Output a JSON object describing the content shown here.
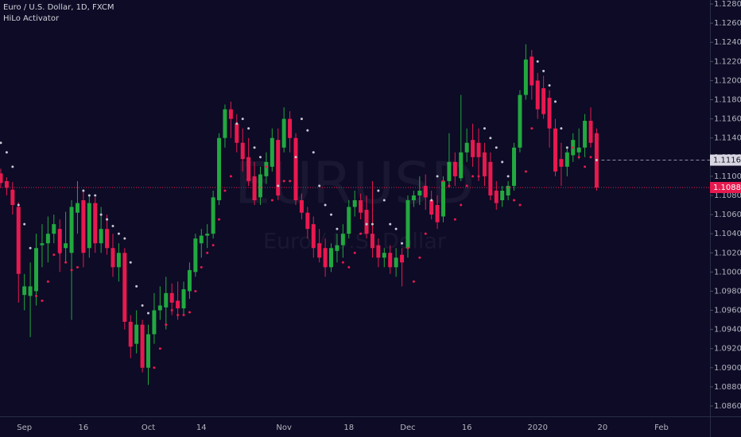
{
  "chart_data": {
    "type": "candlestick",
    "title": "Euro / U.S. Dollar, 1D, FXCM",
    "watermark": {
      "symbol": "EURUSD",
      "description": "Euro / U.S. Dollar"
    },
    "up_color": "#22a83f",
    "down_color": "#e8194f",
    "categories": [
      null,
      null,
      null,
      null,
      "Sep",
      null,
      null,
      null,
      null,
      null,
      null,
      null,
      null,
      null,
      "16",
      null,
      null,
      null,
      null,
      null,
      null,
      null,
      null,
      null,
      null,
      "Oct",
      null,
      null,
      null,
      null,
      null,
      null,
      null,
      null,
      "14",
      null,
      null,
      null,
      null,
      null,
      null,
      null,
      null,
      null,
      null,
      null,
      null,
      null,
      "Nov",
      null,
      null,
      null,
      null,
      null,
      null,
      null,
      null,
      null,
      null,
      "18",
      null,
      null,
      null,
      null,
      null,
      null,
      null,
      null,
      null,
      "Dec",
      null,
      null,
      null,
      null,
      null,
      null,
      null,
      null,
      null,
      "16",
      null,
      null,
      null,
      null,
      null,
      null,
      null,
      null,
      null,
      null,
      null,
      "2020",
      null,
      null,
      null,
      null,
      null,
      null,
      null,
      null,
      null,
      null,
      "20",
      null,
      null,
      null,
      null,
      null,
      null,
      null,
      null,
      null,
      "Feb"
    ],
    "open": [
      1.1103,
      1.1095,
      1.1086,
      1.1068,
      1.0976,
      1.0975,
      1.098,
      1.1028,
      1.103,
      1.104,
      1.1045,
      1.1025,
      1.102,
      1.1062,
      1.1075,
      1.1025,
      1.1072,
      1.103,
      1.1045,
      1.1025,
      1.1005,
      1.102,
      1.0948,
      1.0925,
      1.0945,
      1.09,
      1.0935,
      1.096,
      1.0963,
      1.0978,
      1.097,
      1.0962,
      1.098,
      1.1,
      1.103,
      1.1038,
      1.104,
      1.1075,
      1.114,
      1.117,
      1.1155,
      1.1135,
      1.112,
      1.11,
      1.1078,
      1.11,
      1.111,
      1.1138,
      1.113,
      1.116,
      1.114,
      1.1075,
      1.1062,
      1.105,
      1.103,
      1.1025,
      1.1005,
      1.1022,
      1.1028,
      1.104,
      1.1068,
      1.1075,
      1.1065,
      1.104,
      1.1028,
      1.1015,
      1.102,
      1.1005,
      1.1018,
      1.1025,
      1.1075,
      1.108,
      1.109,
      1.1075,
      1.107,
      1.1058,
      1.1095,
      1.1115,
      1.1098,
      1.1125,
      1.1138,
      1.1135,
      1.1125,
      1.1115,
      1.1085,
      1.1075,
      1.108,
      1.109,
      1.113,
      1.1185,
      1.1225,
      1.12,
      1.1192,
      1.1182,
      1.115,
      1.1118,
      1.111,
      1.1122,
      1.1125,
      1.113,
      1.1158,
      1.1145,
      null,
      null,
      null,
      null,
      null,
      null,
      null,
      null,
      null,
      null,
      null
    ],
    "high": [
      1.1108,
      1.1099,
      1.1094,
      1.1073,
      1.0998,
      1.101,
      1.104,
      1.105,
      1.1058,
      1.106,
      1.1055,
      1.1063,
      1.1075,
      1.1095,
      1.1085,
      1.108,
      1.1078,
      1.1068,
      1.106,
      1.104,
      1.103,
      1.1025,
      1.0955,
      1.096,
      1.095,
      1.0945,
      1.0978,
      1.0985,
      1.0995,
      1.0988,
      1.099,
      1.099,
      1.101,
      1.104,
      1.1045,
      1.105,
      1.1085,
      1.1145,
      1.1175,
      1.1178,
      1.1165,
      1.115,
      1.114,
      1.1115,
      1.111,
      1.1125,
      1.115,
      1.115,
      1.1172,
      1.1168,
      1.1145,
      1.1082,
      1.1068,
      1.1058,
      1.1045,
      1.1035,
      1.103,
      1.104,
      1.105,
      1.1075,
      1.1085,
      1.1082,
      1.108,
      1.1095,
      1.1035,
      1.1025,
      1.1028,
      1.1025,
      1.1025,
      1.108,
      1.1085,
      1.11,
      1.1102,
      1.1085,
      1.108,
      1.11,
      1.1145,
      1.1125,
      1.1185,
      1.115,
      1.1155,
      1.115,
      1.1135,
      1.1125,
      1.1095,
      1.109,
      1.1095,
      1.1135,
      1.119,
      1.1238,
      1.1232,
      1.1208,
      1.1205,
      1.119,
      1.116,
      1.1135,
      1.113,
      1.1145,
      1.115,
      1.1165,
      1.1172,
      1.115,
      null,
      null,
      null,
      null,
      null,
      null,
      null,
      null,
      null,
      null,
      null
    ],
    "low": [
      1.1088,
      1.108,
      1.106,
      1.0968,
      1.096,
      1.0932,
      1.0965,
      1.1005,
      1.101,
      1.103,
      1.1,
      1.101,
      1.095,
      1.104,
      1.1005,
      1.1015,
      1.102,
      1.102,
      1.1018,
      1.0995,
      1.099,
      1.094,
      1.091,
      1.0915,
      1.0895,
      1.0882,
      1.0925,
      1.095,
      1.094,
      1.0955,
      1.095,
      1.0955,
      1.0972,
      1.0995,
      1.1015,
      1.1025,
      1.1035,
      1.107,
      1.113,
      1.114,
      1.1125,
      1.1105,
      1.109,
      1.107,
      1.107,
      1.1092,
      1.1105,
      1.1075,
      1.1125,
      1.1125,
      1.107,
      1.1055,
      1.1035,
      1.1015,
      1.101,
      1.0995,
      1.1,
      1.101,
      1.1015,
      1.1035,
      1.1058,
      1.1055,
      1.1035,
      1.1015,
      1.1005,
      1.1005,
      1.0998,
      1.0995,
      1.0985,
      1.1015,
      1.1068,
      1.107,
      1.1065,
      1.1055,
      1.1045,
      1.1052,
      1.1088,
      1.109,
      1.1095,
      1.1115,
      1.111,
      1.1095,
      1.109,
      1.1075,
      1.1065,
      1.1068,
      1.1075,
      1.1085,
      1.1125,
      1.118,
      1.118,
      1.116,
      1.116,
      1.113,
      1.11,
      1.109,
      1.11,
      1.1115,
      1.1118,
      1.112,
      1.113,
      1.1085,
      null,
      null,
      null,
      null,
      null,
      null,
      null,
      null,
      null,
      null,
      null
    ],
    "close": [
      1.1093,
      1.1088,
      1.107,
      1.0998,
      1.0985,
      1.0985,
      1.1025,
      1.103,
      1.104,
      1.105,
      1.102,
      1.103,
      1.1068,
      1.1072,
      1.102,
      1.1072,
      1.103,
      1.1045,
      1.1025,
      1.1005,
      1.102,
      1.0948,
      1.0922,
      1.0945,
      1.09,
      1.0935,
      1.096,
      1.0965,
      1.0978,
      1.0968,
      1.0962,
      1.0982,
      1.1002,
      1.1035,
      1.1038,
      1.104,
      1.1078,
      1.114,
      1.117,
      1.116,
      1.1135,
      1.1118,
      1.1095,
      1.1075,
      1.1102,
      1.1115,
      1.114,
      1.108,
      1.116,
      1.114,
      1.1075,
      1.1062,
      1.1045,
      1.1025,
      1.1015,
      1.1005,
      1.1025,
      1.1028,
      1.104,
      1.1068,
      1.1075,
      1.1062,
      1.104,
      1.1025,
      1.1015,
      1.102,
      1.1005,
      1.1015,
      1.101,
      1.1075,
      1.108,
      1.1085,
      1.1078,
      1.106,
      1.1052,
      1.1095,
      1.1115,
      1.11,
      1.1125,
      1.1135,
      1.112,
      1.112,
      1.11,
      1.108,
      1.1072,
      1.1085,
      1.109,
      1.113,
      1.1185,
      1.1222,
      1.1195,
      1.117,
      1.1165,
      1.115,
      1.1105,
      1.111,
      1.1125,
      1.1138,
      1.113,
      1.1158,
      1.1135,
      1.10883,
      null,
      null,
      null,
      null,
      null,
      null,
      null,
      null,
      null,
      null,
      null
    ],
    "hilo": {
      "name": "HiLo Activator",
      "above_color": "#c9c6d6",
      "below_color": "#e8194f",
      "values": [
        1.1135,
        1.1125,
        1.111,
        1.107,
        1.105,
        1.1025,
        1.0975,
        1.097,
        1.099,
        1.1018,
        1.102,
        1.101,
        1.1002,
        1.1005,
        1.1085,
        1.108,
        1.108,
        1.106,
        1.1055,
        1.1048,
        1.104,
        1.1035,
        1.101,
        1.0985,
        1.0965,
        1.0957,
        1.09,
        1.092,
        1.0945,
        1.096,
        1.0955,
        1.0955,
        1.0958,
        1.098,
        1.1005,
        1.102,
        1.1028,
        1.1055,
        1.1085,
        1.11,
        1.1155,
        1.116,
        1.115,
        1.113,
        1.112,
        1.111,
        1.1075,
        1.109,
        1.1095,
        1.1095,
        1.112,
        1.116,
        1.1148,
        1.1125,
        1.109,
        1.107,
        1.106,
        1.1045,
        1.101,
        1.1005,
        1.102,
        1.104,
        1.105,
        1.105,
        1.1085,
        1.1075,
        1.105,
        1.1045,
        1.103,
        1.1025,
        1.099,
        1.1015,
        1.104,
        1.1075,
        1.11,
        1.1095,
        1.109,
        1.1055,
        1.107,
        1.109,
        1.11,
        1.11,
        1.115,
        1.114,
        1.113,
        1.1115,
        1.11,
        1.1075,
        1.107,
        1.1105,
        1.115,
        1.122,
        1.121,
        1.1195,
        1.1178,
        1.115,
        1.113,
        1.113,
        1.112,
        1.111,
        1.112,
        1.11169,
        null,
        null,
        null,
        null,
        null,
        null,
        null,
        null,
        null,
        null,
        null
      ]
    },
    "ylim": [
      1.08492,
      1.12842
    ],
    "yticks": [
      {
        "value": 1.086,
        "label": "1.08600"
      },
      {
        "value": 1.088,
        "label": "1.08800"
      },
      {
        "value": 1.09,
        "label": "1.09000"
      },
      {
        "value": 1.092,
        "label": "1.09200"
      },
      {
        "value": 1.094,
        "label": "1.09400"
      },
      {
        "value": 1.096,
        "label": "1.09600"
      },
      {
        "value": 1.098,
        "label": "1.09800"
      },
      {
        "value": 1.1,
        "label": "1.10000"
      },
      {
        "value": 1.102,
        "label": "1.10200"
      },
      {
        "value": 1.104,
        "label": "1.10400"
      },
      {
        "value": 1.106,
        "label": "1.10600"
      },
      {
        "value": 1.108,
        "label": "1.10800"
      },
      {
        "value": 1.11,
        "label": "1.11000"
      },
      {
        "value": 1.112,
        "label": "1.11200"
      },
      {
        "value": 1.114,
        "label": "1.11400"
      },
      {
        "value": 1.116,
        "label": "1.11600"
      },
      {
        "value": 1.118,
        "label": "1.11800"
      },
      {
        "value": 1.12,
        "label": "1.12000"
      },
      {
        "value": 1.122,
        "label": "1.12200"
      },
      {
        "value": 1.124,
        "label": "1.12400"
      },
      {
        "value": 1.126,
        "label": "1.12600"
      },
      {
        "value": 1.128,
        "label": "1.12800"
      }
    ],
    "grid": false
  }
}
